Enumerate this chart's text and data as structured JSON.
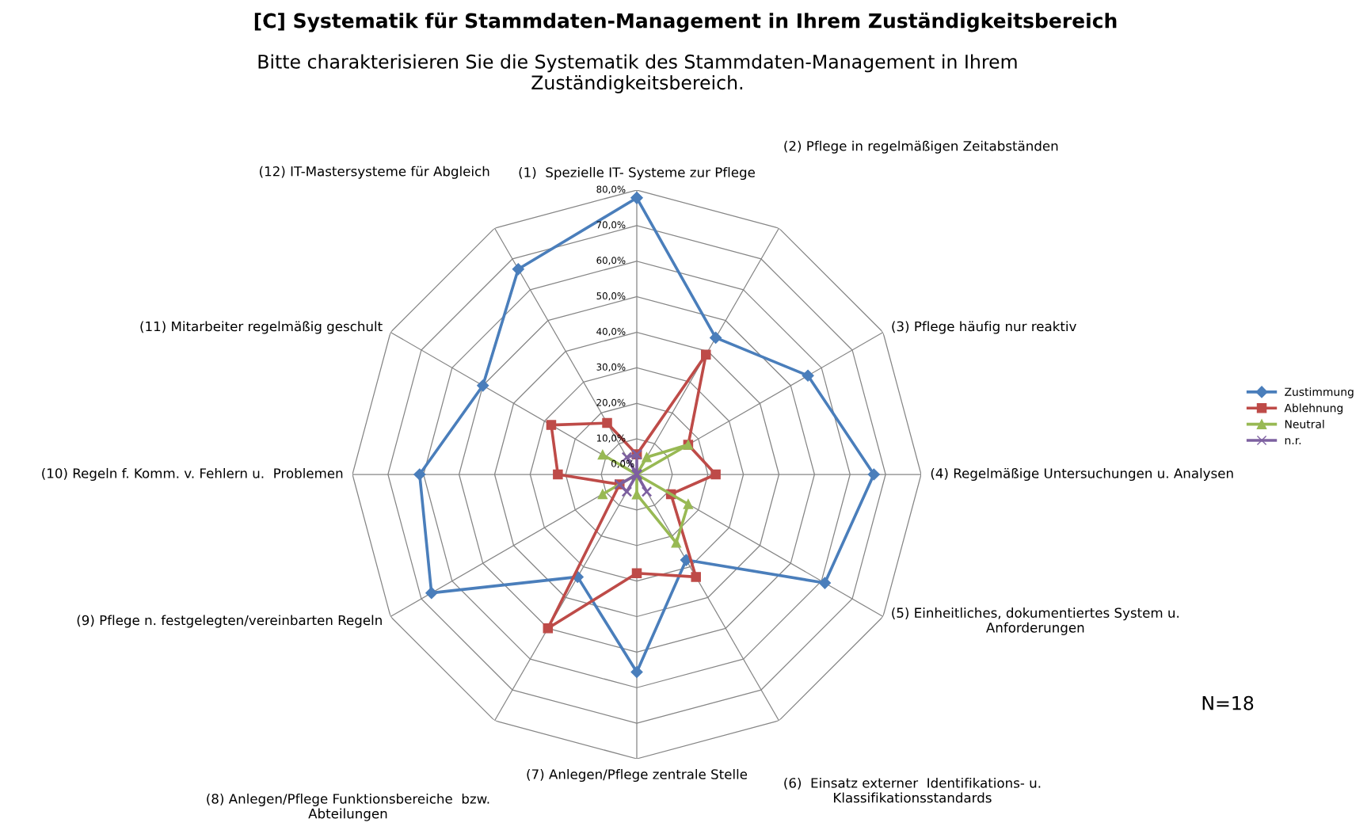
{
  "chart_data": {
    "type": "radar",
    "title": "[C] Systematik für Stammdaten-Management in Ihrem Zuständigkeitsbereich",
    "subtitle": "Bitte charakterisieren Sie die Systematik des Stammdaten-Management in Ihrem\nZuständigkeitsbereich.",
    "categories": [
      "(1)  Spezielle IT- Systeme zur Pflege",
      "(2) Pflege in regelmäßigen Zeitabständen",
      "(3) Pflege häufig nur reaktiv",
      "(4) Regelmäßige Untersuchungen u. Analysen",
      "(5) Einheitliches, dokumentiertes System u.\nAnforderungen",
      "(6)  Einsatz externer  Identifikations- u.\nKlassifikationsstandards",
      "(7) Anlegen/Pflege zentrale Stelle",
      "(8) Anlegen/Pflege Funktionsbereiche  bzw.\nAbteilungen",
      "(9) Pflege n. festgelegten/vereinbarten Regeln",
      "(10) Regeln f. Komm. v. Fehlern u.  Problemen",
      "(11) Mitarbeiter regelmäßig geschult",
      "(12) IT-Mastersysteme für Abgleich"
    ],
    "series": [
      {
        "name": "Zustimmung",
        "color": "#4a7ebb",
        "marker": "diamond",
        "values": [
          77.8,
          44.4,
          55.6,
          66.7,
          61.1,
          27.8,
          55.6,
          33.3,
          66.7,
          61.1,
          50.0,
          66.7
        ]
      },
      {
        "name": "Ablehnung",
        "color": "#be4b48",
        "marker": "square",
        "values": [
          5.6,
          38.9,
          16.7,
          22.2,
          11.1,
          33.3,
          27.8,
          50.0,
          5.6,
          22.2,
          27.8,
          16.7
        ]
      },
      {
        "name": "Neutral",
        "color": "#98b954",
        "marker": "triangle",
        "values": [
          0,
          5.6,
          16.7,
          0,
          16.7,
          22.2,
          5.6,
          0,
          11.1,
          0,
          11.1,
          0
        ]
      },
      {
        "name": "n.r.",
        "color": "#7d60a0",
        "marker": "cross",
        "values": [
          5.6,
          0,
          0,
          0,
          0,
          5.6,
          0,
          5.6,
          5.6,
          0,
          0,
          5.6
        ]
      }
    ],
    "ylim": [
      0,
      80
    ],
    "yticks": [
      {
        "value": 0,
        "label": "0,0%"
      },
      {
        "value": 10,
        "label": "10,0%"
      },
      {
        "value": 20,
        "label": "20,0%"
      },
      {
        "value": 30,
        "label": "30,0%"
      },
      {
        "value": 40,
        "label": "40,0%"
      },
      {
        "value": 50,
        "label": "50,0%"
      },
      {
        "value": 60,
        "label": "60,0%"
      },
      {
        "value": 70,
        "label": "70,0%"
      },
      {
        "value": 80,
        "label": "80,0%"
      }
    ],
    "grid": true,
    "legend": "right",
    "annotations": [
      "N=18"
    ]
  }
}
